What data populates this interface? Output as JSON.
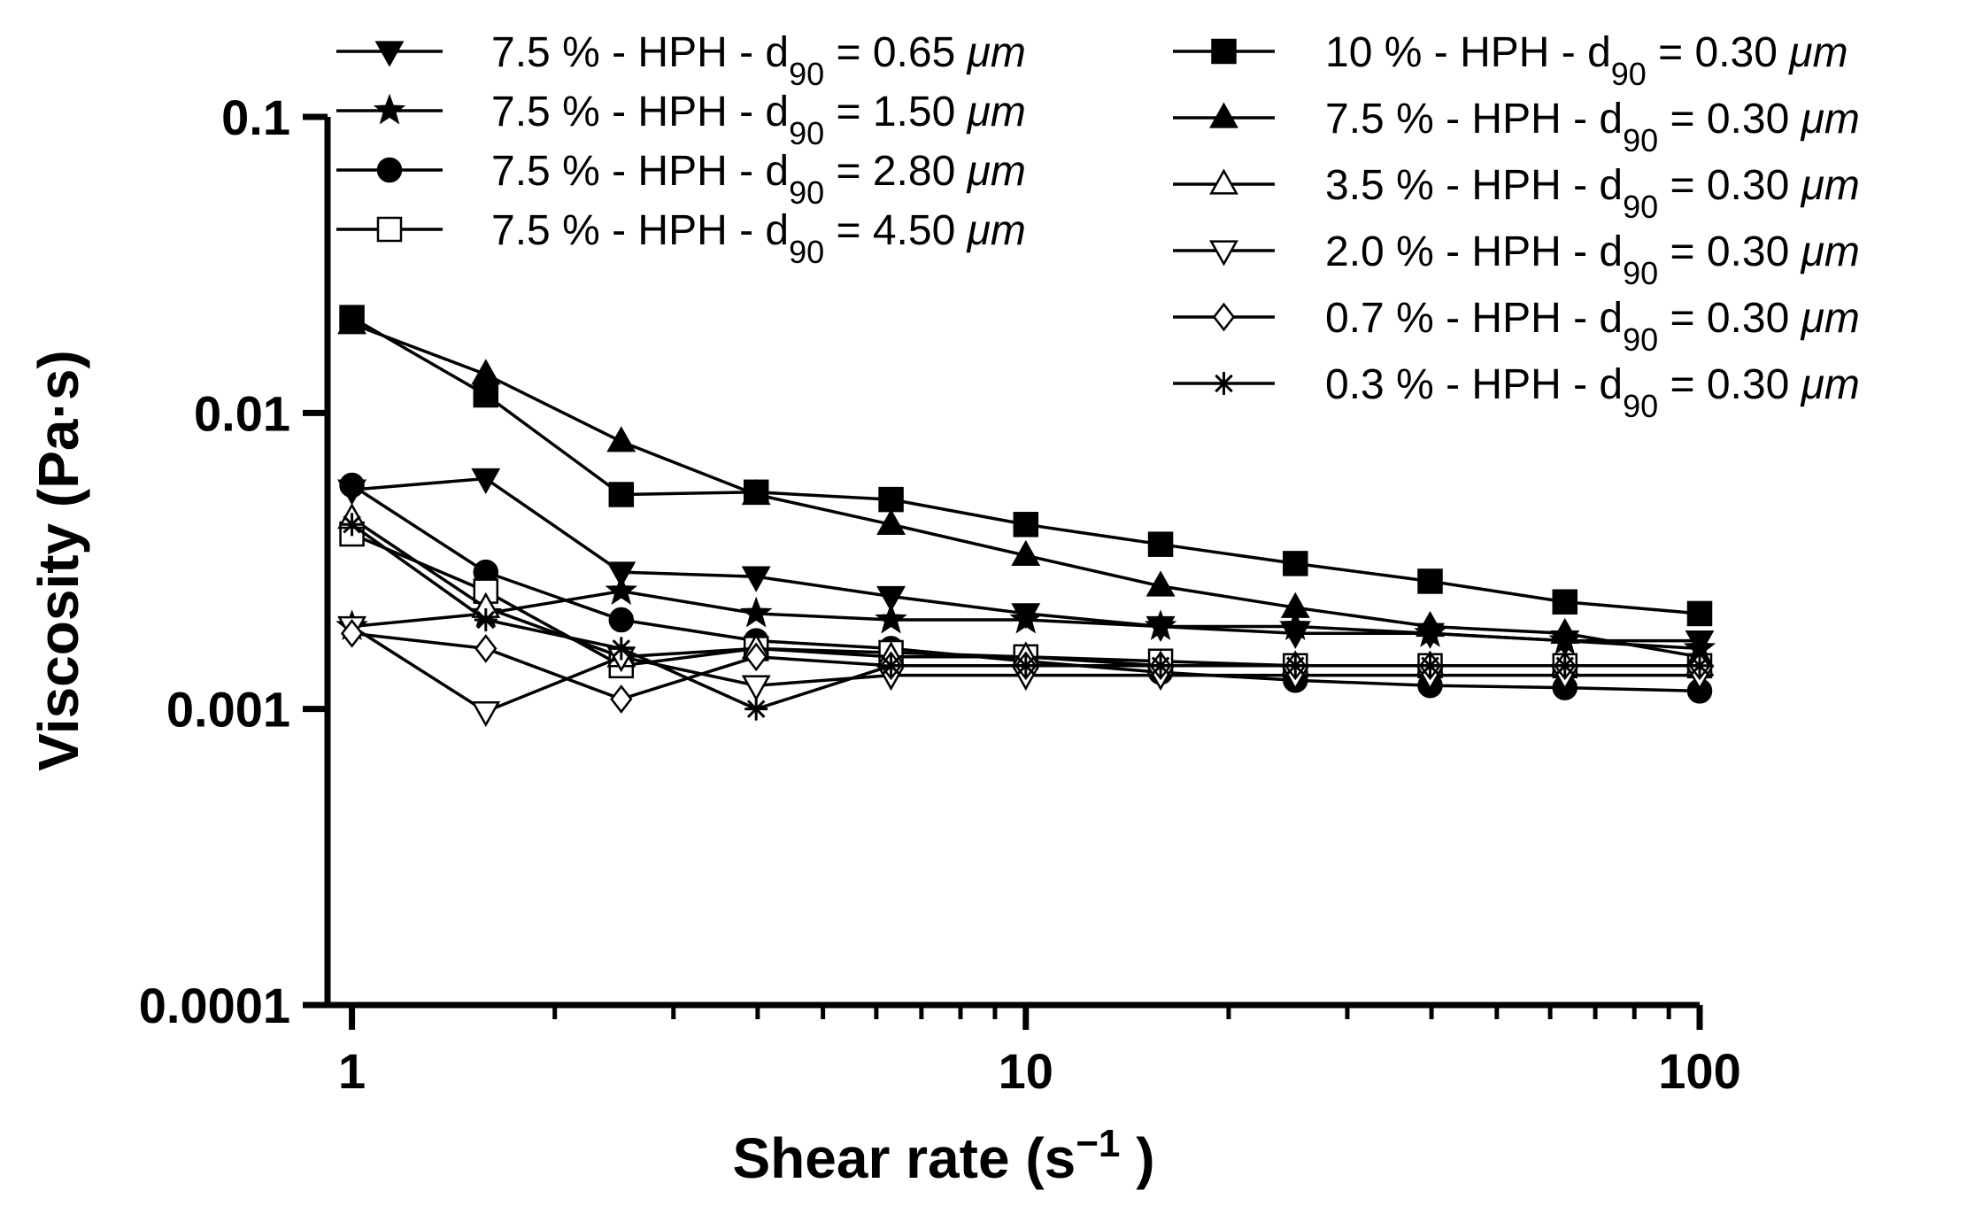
{
  "chart_data": {
    "type": "line",
    "xscale": "log",
    "yscale": "log",
    "xlabel": "Shear rate (s",
    "xlabel_sup": "−1",
    "xlabel_close": " )",
    "ylabel": "Viscosity (Pa·s)",
    "xlim": [
      0.92,
      100
    ],
    "ylim": [
      0.0001,
      0.1
    ],
    "xticks": [
      {
        "value": 1,
        "label": "1"
      },
      {
        "value": 10,
        "label": "10"
      },
      {
        "value": 100,
        "label": "100"
      }
    ],
    "yticks": [
      {
        "value": 0.0001,
        "label": "0.0001"
      },
      {
        "value": 0.001,
        "label": "0.001"
      },
      {
        "value": 0.01,
        "label": "0.01"
      },
      {
        "value": 0.1,
        "label": "0.1"
      }
    ],
    "x": [
      1,
      1.58,
      2.51,
      3.98,
      6.31,
      10,
      15.85,
      25.12,
      39.81,
      63.1,
      100
    ],
    "series": [
      {
        "name": "7.5 % - HPH - d90 = 0.65 μm",
        "prefix": "7.5 % - HPH - d",
        "sub": "90",
        "suffix": " = 0.65 ",
        "unit": "μm",
        "marker": "triangle-down-filled",
        "values": [
          0.0055,
          0.006,
          0.0029,
          0.0028,
          0.0024,
          0.0021,
          0.0019,
          0.0018,
          0.0018,
          0.0017,
          0.0017
        ]
      },
      {
        "name": "7.5 % - HPH - d90 = 1.50 μm",
        "prefix": "7.5 % - HPH - d",
        "sub": "90",
        "suffix": " = 1.50 ",
        "unit": "μm",
        "marker": "star-filled",
        "values": [
          0.0019,
          0.0021,
          0.0025,
          0.0021,
          0.002,
          0.002,
          0.0019,
          0.0019,
          0.0018,
          0.0017,
          0.0016
        ]
      },
      {
        "name": "7.5 % - HPH - d90 = 2.80 μm",
        "prefix": "7.5 % - HPH - d",
        "sub": "90",
        "suffix": " = 2.80 ",
        "unit": "μm",
        "marker": "circle-filled",
        "values": [
          0.0057,
          0.0029,
          0.002,
          0.0017,
          0.0016,
          0.00145,
          0.00133,
          0.00125,
          0.0012,
          0.00118,
          0.00115
        ]
      },
      {
        "name": "7.5 % - HPH - d90 = 4.50 μm",
        "prefix": "7.5 % - HPH - d",
        "sub": "90",
        "suffix": " = 4.50 ",
        "unit": "μm",
        "marker": "square-open",
        "values": [
          0.0039,
          0.0025,
          0.0014,
          0.0016,
          0.00155,
          0.0015,
          0.00145,
          0.0014,
          0.0014,
          0.0014,
          0.0014
        ]
      },
      {
        "name": "10 % - HPH - d90 = 0.30 μm",
        "prefix": "10 % - HPH - d",
        "sub": "90",
        "suffix": "  = 0.30 ",
        "unit": "μm",
        "marker": "square-filled",
        "values": [
          0.021,
          0.0115,
          0.0053,
          0.0054,
          0.0051,
          0.0042,
          0.0036,
          0.0031,
          0.0027,
          0.0023,
          0.0021
        ]
      },
      {
        "name": "7.5 % - HPH - d90 = 0.30 μm",
        "prefix": "7.5 % - HPH - d",
        "sub": "90",
        "suffix": " = 0.30 ",
        "unit": "μm",
        "marker": "triangle-up-filled",
        "values": [
          0.02,
          0.0135,
          0.008,
          0.0053,
          0.0042,
          0.0033,
          0.0026,
          0.0022,
          0.0019,
          0.0018,
          0.0015
        ]
      },
      {
        "name": "3.5 % - HPH - d90 = 0.30 μm",
        "prefix": "3.5 % - HPH - d",
        "sub": "90",
        "suffix": " = 0.30 ",
        "unit": "μm",
        "marker": "triangle-up-open",
        "values": [
          0.0044,
          0.0022,
          0.0015,
          0.0016,
          0.0015,
          0.0015,
          0.0014,
          0.0014,
          0.0014,
          0.0014,
          0.0014
        ]
      },
      {
        "name": "2.0 % - HPH - d90 = 0.30 μm",
        "prefix": "2.0 % - HPH - d",
        "sub": "90",
        "suffix": " = 0.30 ",
        "unit": "μm",
        "marker": "triangle-down-open",
        "values": [
          0.0019,
          0.00098,
          0.0015,
          0.0012,
          0.0013,
          0.0013,
          0.0013,
          0.0013,
          0.0013,
          0.0013,
          0.0013
        ]
      },
      {
        "name": "0.7 % - HPH - d90 = 0.30 μm",
        "prefix": "0.7 % - HPH - d",
        "sub": "90",
        "suffix": " = 0.30 ",
        "unit": "μm",
        "marker": "diamond-open",
        "values": [
          0.0018,
          0.0016,
          0.00108,
          0.0015,
          0.0014,
          0.0014,
          0.0014,
          0.0014,
          0.0014,
          0.0014,
          0.0014
        ]
      },
      {
        "name": "0.3 % - HPH - d90 = 0.30 μm",
        "prefix": "0.3 % - HPH - d",
        "sub": "90",
        "suffix": " = 0.30 ",
        "unit": "μm",
        "marker": "asterisk",
        "values": [
          0.0042,
          0.002,
          0.0016,
          0.001,
          0.0014,
          0.0014,
          0.0014,
          0.0014,
          0.0014,
          0.0014,
          0.0014
        ]
      }
    ],
    "legend_columns": [
      [
        0,
        1,
        2,
        3
      ],
      [
        4,
        5,
        6,
        7,
        8,
        9
      ]
    ],
    "legend": "top-right",
    "grid": false
  }
}
